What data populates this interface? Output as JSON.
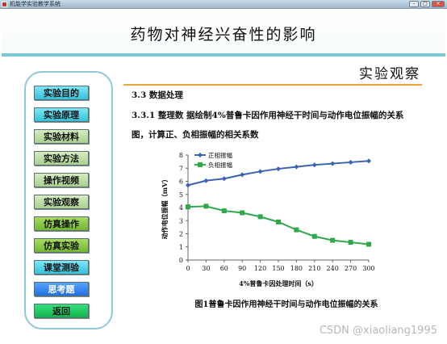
{
  "window": {
    "title": "机能学实验教学系统",
    "minimize": "–",
    "maximize": "□",
    "close": "×"
  },
  "header": {
    "title": "药物对神经兴奋性的影响"
  },
  "sidebar": {
    "items": [
      {
        "label": "实验目的"
      },
      {
        "label": "实验原理"
      },
      {
        "label": "实验材料"
      },
      {
        "label": "实验方法"
      },
      {
        "label": "操作视频"
      },
      {
        "label": "实验观察"
      },
      {
        "label": "仿真操作"
      },
      {
        "label": "仿真实验"
      },
      {
        "label": "课堂测验"
      },
      {
        "label": "思考题"
      },
      {
        "label": "返回"
      }
    ]
  },
  "content": {
    "section_title": "实验观察",
    "subheading": "3.3 数据处理",
    "paragraph": "3.3.1 整理数 据绘制4%普鲁卡因作用神经干时间与动作电位振幅的关系图，计算正、负相振幅的相关系数",
    "caption": "图1普鲁卡因作用神经干时间与动作电位振幅的关系"
  },
  "chart_data": {
    "type": "line",
    "x": [
      0,
      30,
      60,
      90,
      120,
      150,
      180,
      210,
      240,
      270,
      300
    ],
    "xlabel": "4%普鲁卡因处理时间（s）",
    "ylabel": "动作电位振幅（mV）",
    "xlim": [
      0,
      300
    ],
    "ylim": [
      0,
      8
    ],
    "xticks": [
      0,
      30,
      60,
      90,
      120,
      150,
      180,
      210,
      240,
      270,
      300
    ],
    "yticks": [
      0,
      1,
      2,
      3,
      4,
      5,
      6,
      7,
      8
    ],
    "grid": false,
    "legend": "top-left",
    "series": [
      {
        "name": "正相振幅",
        "color": "#3a62b0",
        "marker": "diamond",
        "values": [
          5.7,
          6.05,
          6.2,
          6.5,
          6.75,
          6.95,
          7.1,
          7.25,
          7.35,
          7.45,
          7.55
        ]
      },
      {
        "name": "负相振幅",
        "color": "#2ea84a",
        "marker": "square",
        "values": [
          4.05,
          4.1,
          3.75,
          3.6,
          3.3,
          2.9,
          2.3,
          1.8,
          1.5,
          1.35,
          1.2
        ]
      }
    ]
  },
  "watermark": "CSDN @xiaoliang1995"
}
